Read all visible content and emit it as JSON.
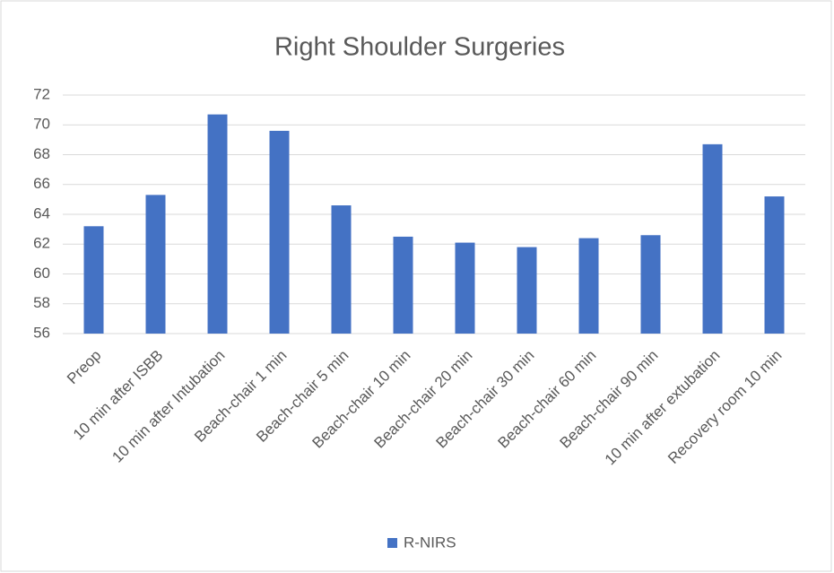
{
  "chart_data": {
    "type": "bar",
    "title": "Right Shoulder Surgeries",
    "categories": [
      "Preop",
      "10 min after ISBB",
      "10 min after Intubation",
      "Beach-chair 1 min",
      "Beach-chair 5 min",
      "Beach-chair 10 min",
      "Beach-chair 20 min",
      "Beach-chair 30 min",
      "Beach-chair 60 min",
      "Beach-chair 90 min",
      "10 min after extubation",
      "Recovery room 10 min"
    ],
    "series": [
      {
        "name": "R-NIRS",
        "color": "#4472c4",
        "values": [
          63.2,
          65.3,
          70.7,
          69.6,
          64.6,
          62.5,
          62.1,
          61.8,
          62.4,
          62.6,
          68.7,
          65.2
        ]
      }
    ],
    "ylim": [
      56,
      72
    ],
    "yticks": [
      56,
      58,
      60,
      62,
      64,
      66,
      68,
      70,
      72
    ],
    "grid": true,
    "legend": "bottom"
  }
}
